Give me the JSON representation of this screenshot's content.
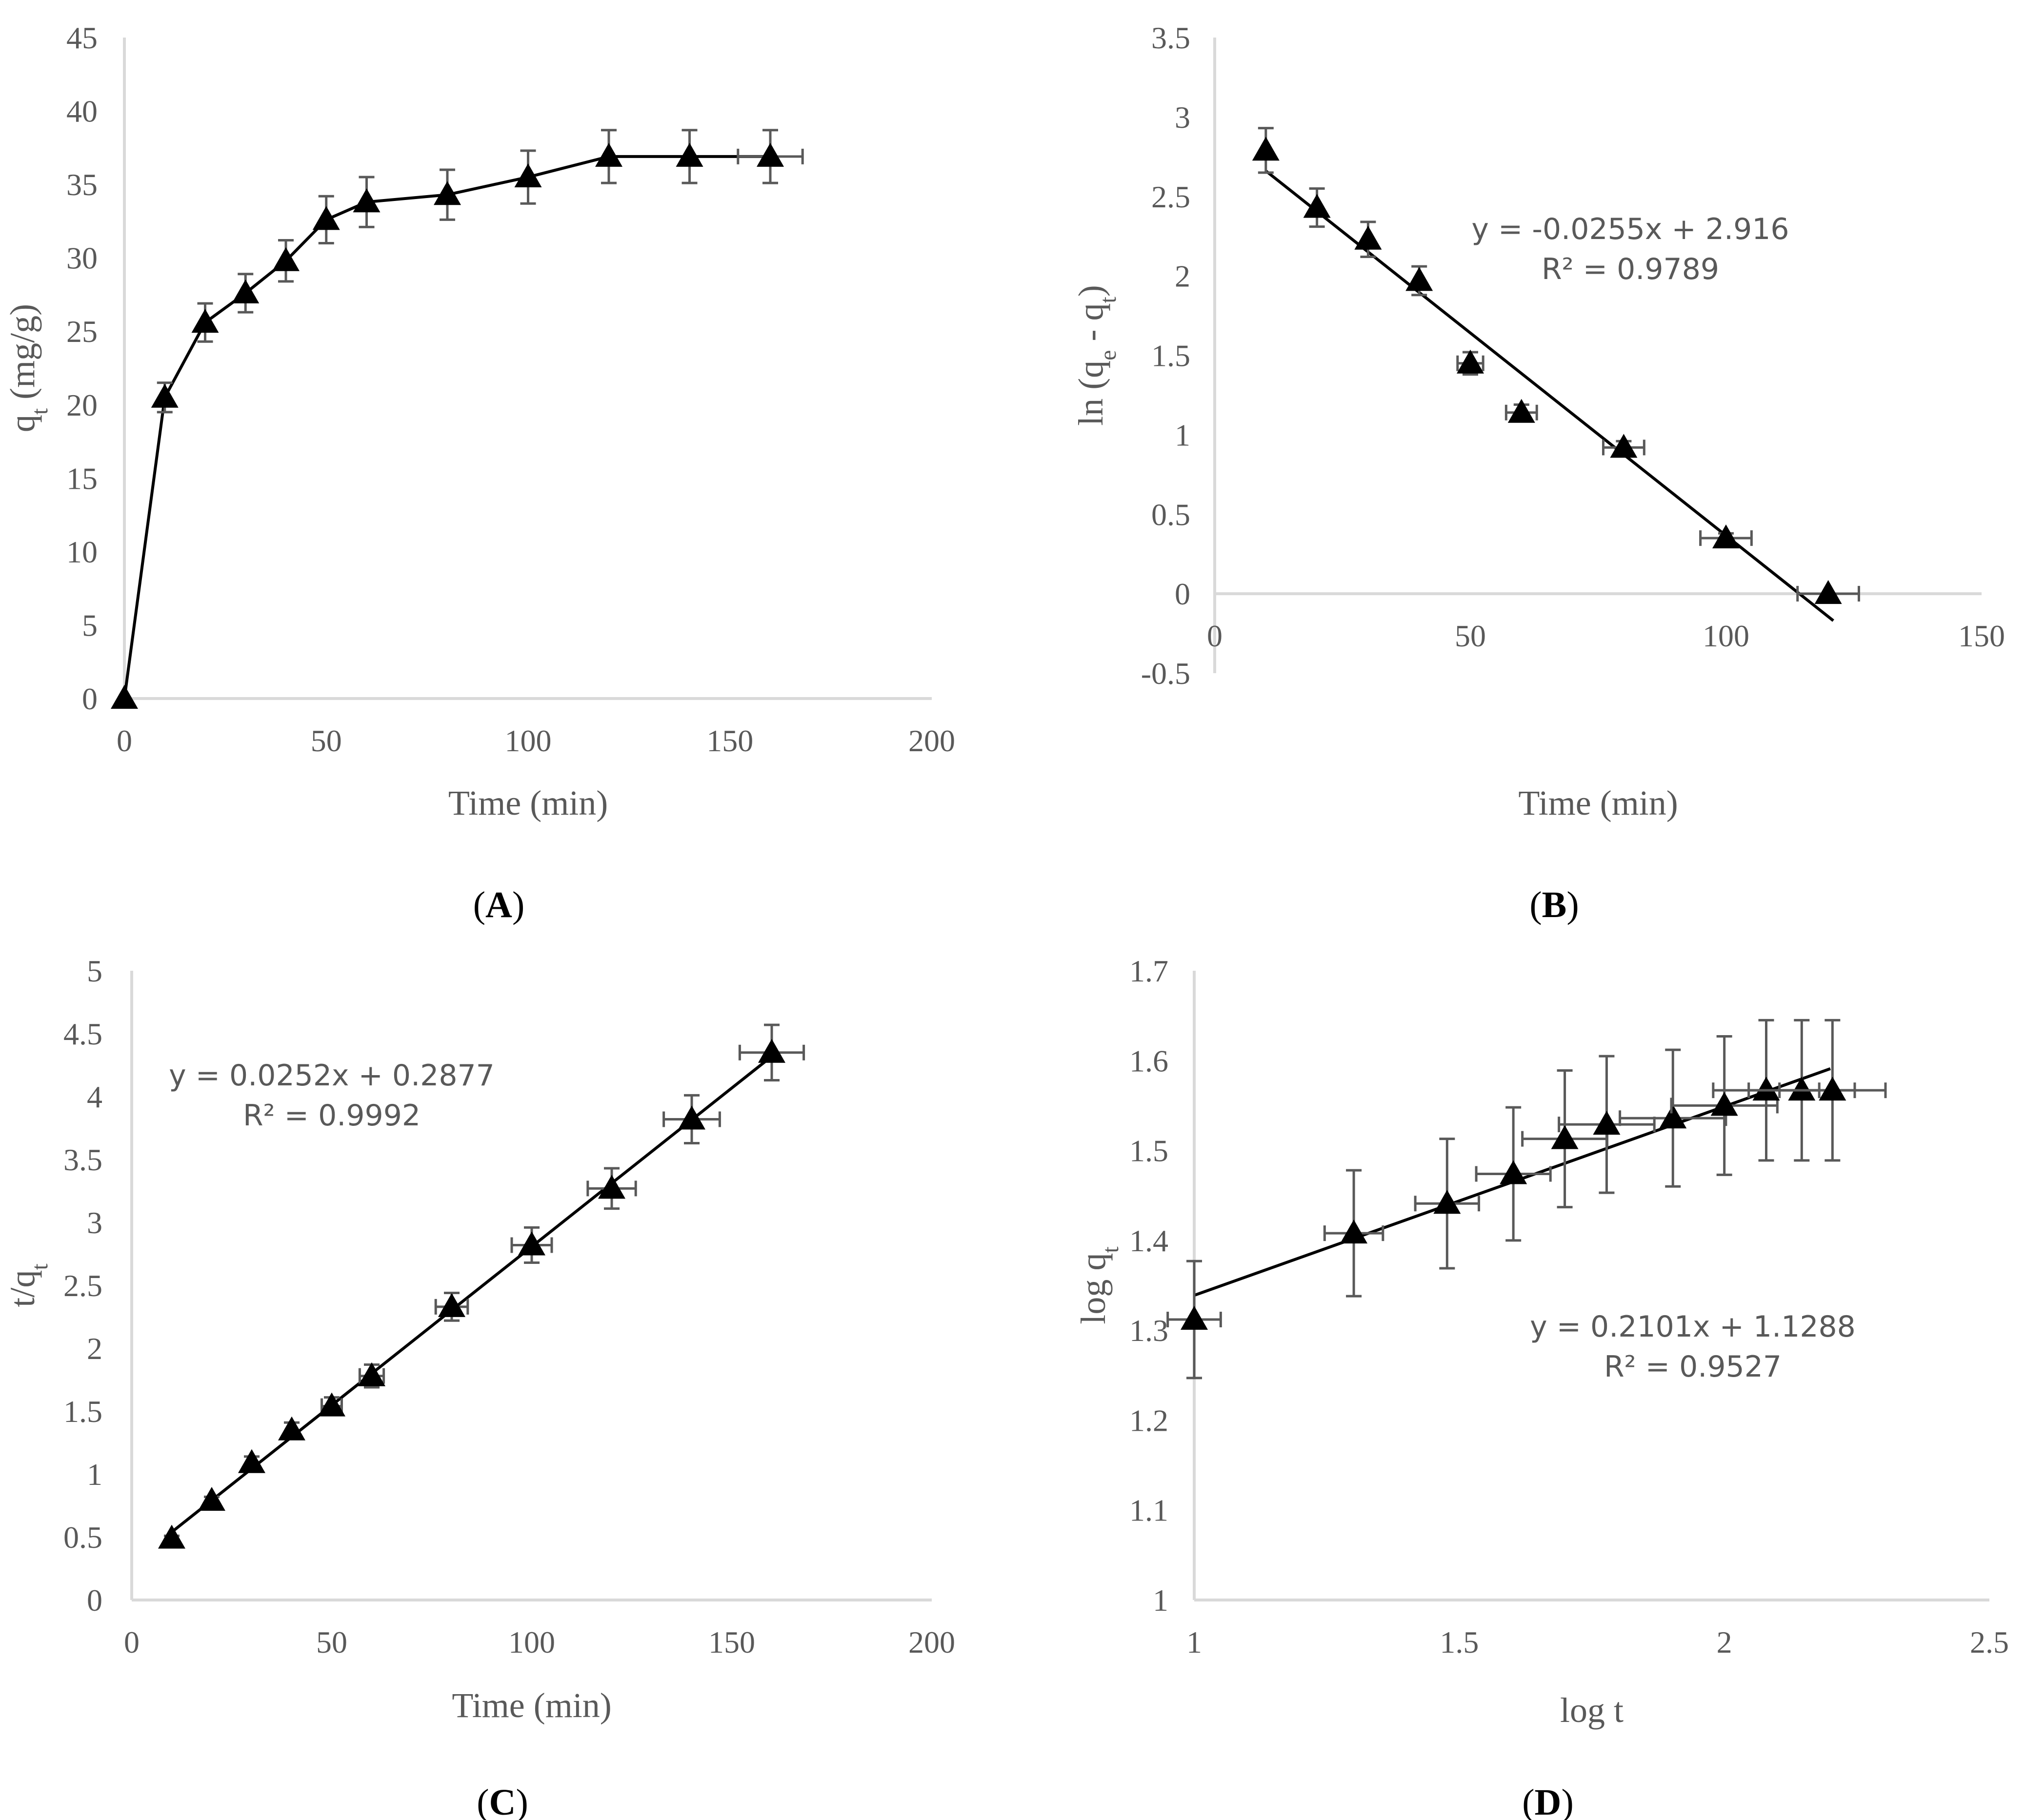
{
  "chart_data": [
    {
      "id": "A",
      "type": "line",
      "panel_label": "A",
      "xlabel": "Time (min)",
      "ylabel_main": "q",
      "ylabel_sub": "t",
      "ylabel_suffix": " (mg/g)",
      "xlim": [
        0,
        200
      ],
      "ylim": [
        0,
        45
      ],
      "xticks": [
        0,
        50,
        100,
        150,
        200
      ],
      "yticks": [
        0,
        5,
        10,
        15,
        20,
        25,
        30,
        35,
        40,
        45
      ],
      "series": [
        {
          "name": "qt",
          "x": [
            0,
            10,
            20,
            30,
            40,
            50,
            60,
            80,
            100,
            120,
            140,
            160
          ],
          "y": [
            0,
            20.5,
            25.6,
            27.6,
            29.8,
            32.6,
            33.8,
            34.3,
            35.5,
            36.9,
            36.9,
            36.9
          ],
          "yerr": [
            0,
            1.0,
            1.3,
            1.3,
            1.4,
            1.6,
            1.7,
            1.7,
            1.8,
            1.8,
            1.8,
            1.8
          ],
          "xerr": [
            0,
            0,
            0,
            0,
            0,
            0,
            0,
            0,
            0,
            0,
            0,
            8
          ]
        }
      ]
    },
    {
      "id": "B",
      "type": "scatter",
      "panel_label": "B",
      "xlabel": "Time (min)",
      "ylabel_main": "ln (q",
      "ylabel_sub": "e",
      "ylabel_mid": " - q",
      "ylabel_sub2": "t",
      "ylabel_suffix": ")",
      "xlim": [
        0,
        150
      ],
      "ylim": [
        -0.5,
        3.5
      ],
      "xticks": [
        0,
        50,
        100,
        150
      ],
      "yticks": [
        -0.5,
        0,
        0.5,
        1,
        1.5,
        2,
        2.5,
        3,
        3.5
      ],
      "equation": "y = -0.0255x + 2.916",
      "r2": "R² = 0.9789",
      "trend": {
        "slope": -0.0255,
        "intercept": 2.916,
        "x_start": 10,
        "x_end": 121
      },
      "series": [
        {
          "name": "ln(qe-qt)",
          "x": [
            10,
            20,
            30,
            40,
            50,
            60,
            80,
            100,
            120
          ],
          "y": [
            2.79,
            2.43,
            2.23,
            1.97,
            1.45,
            1.14,
            0.92,
            0.35,
            0.0
          ],
          "yerr": [
            0.14,
            0.12,
            0.11,
            0.09,
            0.07,
            0.05,
            0.04,
            0.03,
            0
          ],
          "xerr": [
            0,
            0,
            0,
            0,
            2.5,
            3,
            4,
            5,
            6
          ]
        }
      ]
    },
    {
      "id": "C",
      "type": "scatter",
      "panel_label": "C",
      "xlabel": "Time (min)",
      "ylabel_main": "t/q",
      "ylabel_sub": "t",
      "ylabel_suffix": "",
      "xlim": [
        0,
        200
      ],
      "ylim": [
        0,
        5
      ],
      "xticks": [
        0,
        50,
        100,
        150,
        200
      ],
      "yticks": [
        0,
        0.5,
        1,
        1.5,
        2,
        2.5,
        3,
        3.5,
        4,
        4.5,
        5
      ],
      "equation": "y = 0.0252x + 0.2877",
      "r2": "R² = 0.9992",
      "trend": {
        "slope": 0.0252,
        "intercept": 0.2877,
        "x_start": 10,
        "x_end": 160
      },
      "series": [
        {
          "name": "t/qt",
          "x": [
            10,
            20,
            30,
            40,
            50,
            60,
            80,
            100,
            120,
            140,
            160
          ],
          "y": [
            0.49,
            0.79,
            1.09,
            1.35,
            1.54,
            1.78,
            2.33,
            2.82,
            3.27,
            3.82,
            4.35
          ],
          "yerr": [
            0.02,
            0.03,
            0.05,
            0.06,
            0.07,
            0.09,
            0.11,
            0.14,
            0.16,
            0.19,
            0.22
          ],
          "xerr": [
            0,
            0,
            0,
            0,
            2.5,
            3,
            4,
            5,
            6,
            7,
            8
          ]
        }
      ]
    },
    {
      "id": "D",
      "type": "scatter",
      "panel_label": "D",
      "xlabel": "log t",
      "ylabel_main": "log q",
      "ylabel_sub": "t",
      "ylabel_suffix": "",
      "xlim": [
        1,
        2.5
      ],
      "ylim": [
        1,
        1.7
      ],
      "xticks": [
        1,
        1.5,
        2,
        2.5
      ],
      "yticks": [
        1,
        1.1,
        1.2,
        1.3,
        1.4,
        1.5,
        1.6,
        1.7
      ],
      "equation": "y = 0.2101x + 1.1288",
      "r2": "R² = 0.9527",
      "trend": {
        "slope": 0.2101,
        "intercept": 1.1288,
        "x_start": 1,
        "x_end": 2.2
      },
      "series": [
        {
          "name": "log qt",
          "x": [
            1,
            1.301,
            1.477,
            1.602,
            1.699,
            1.778,
            1.903,
            2.0,
            2.079,
            2.146,
            2.204
          ],
          "y": [
            1.312,
            1.408,
            1.441,
            1.474,
            1.513,
            1.529,
            1.536,
            1.55,
            1.567,
            1.567,
            1.567
          ],
          "yerr": [
            0.065,
            0.07,
            0.072,
            0.074,
            0.076,
            0.076,
            0.076,
            0.077,
            0.078,
            0.078,
            0.078
          ],
          "xerr": [
            0.05,
            0.055,
            0.06,
            0.07,
            0.08,
            0.09,
            0.1,
            0.1,
            0.1,
            0.1,
            0.1
          ]
        }
      ]
    }
  ]
}
